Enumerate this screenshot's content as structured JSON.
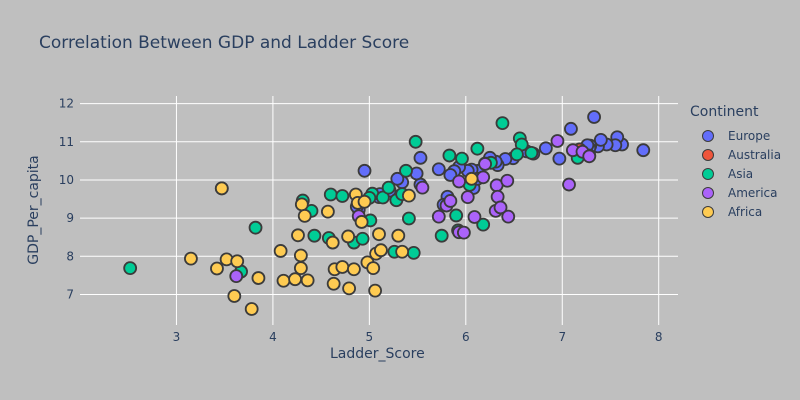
{
  "chart_data": {
    "type": "scatter",
    "title": "Correlation Between GDP and Ladder Score",
    "xlabel": "Ladder_Score",
    "ylabel": "GDP_Per_capita",
    "xlim": [
      2.0,
      8.2
    ],
    "ylim": [
      6.2,
      12.2
    ],
    "xticks": [
      3,
      4,
      5,
      6,
      7,
      8
    ],
    "yticks": [
      7,
      8,
      9,
      10,
      11,
      12
    ],
    "grid": true,
    "background": "#bfbfbf",
    "gridColor": "#ffffff",
    "legend": {
      "title": "Continent",
      "position": "right"
    },
    "series": [
      {
        "name": "Europe",
        "color": "#636efa",
        "points": [
          [
            7.84,
            10.78
          ],
          [
            7.62,
            10.93
          ],
          [
            7.57,
            11.12
          ],
          [
            7.55,
            10.91
          ],
          [
            7.46,
            10.93
          ],
          [
            7.37,
            10.88
          ],
          [
            7.4,
            11.05
          ],
          [
            7.33,
            11.65
          ],
          [
            7.29,
            10.9
          ],
          [
            7.28,
            10.83
          ],
          [
            7.26,
            10.91
          ],
          [
            7.09,
            11.34
          ],
          [
            6.97,
            10.56
          ],
          [
            6.83,
            10.83
          ],
          [
            6.7,
            10.69
          ],
          [
            6.63,
            10.75
          ],
          [
            6.49,
            10.57
          ],
          [
            6.41,
            10.55
          ],
          [
            6.33,
            10.39
          ],
          [
            6.31,
            10.48
          ],
          [
            6.25,
            10.58
          ],
          [
            6.2,
            10.43
          ],
          [
            6.13,
            10.24
          ],
          [
            6.06,
            10.27
          ],
          [
            6.02,
            10.24
          ],
          [
            5.93,
            10.34
          ],
          [
            5.88,
            10.23
          ],
          [
            5.84,
            10.13
          ],
          [
            5.81,
            9.56
          ],
          [
            5.77,
            9.35
          ],
          [
            5.72,
            10.28
          ],
          [
            5.53,
            9.88
          ],
          [
            5.53,
            10.58
          ],
          [
            5.49,
            10.17
          ],
          [
            5.34,
            9.94
          ],
          [
            5.29,
            10.03
          ],
          [
            5.1,
            9.55
          ],
          [
            4.95,
            10.24
          ],
          [
            4.89,
            9.22
          ],
          [
            4.87,
            9.3
          ],
          [
            5.11,
            9.63
          ],
          [
            5.21,
            9.72
          ],
          [
            6.08,
            9.79
          ],
          [
            6.12,
            10.03
          ]
        ]
      },
      {
        "name": "Australia",
        "color": "#ef553b",
        "points": [
          [
            7.18,
            10.8
          ],
          [
            7.28,
            10.64
          ]
        ]
      },
      {
        "name": "Asia",
        "color": "#00cc96",
        "points": [
          [
            2.52,
            7.69
          ],
          [
            3.67,
            7.6
          ],
          [
            3.82,
            8.75
          ],
          [
            4.31,
            9.46
          ],
          [
            4.4,
            9.19
          ],
          [
            4.43,
            8.54
          ],
          [
            4.58,
            8.48
          ],
          [
            4.6,
            9.62
          ],
          [
            4.72,
            9.58
          ],
          [
            4.84,
            8.36
          ],
          [
            4.93,
            8.46
          ],
          [
            5.01,
            8.94
          ],
          [
            5.03,
            9.64
          ],
          [
            5.14,
            9.54
          ],
          [
            5.2,
            9.8
          ],
          [
            5.26,
            8.12
          ],
          [
            5.28,
            9.47
          ],
          [
            5.34,
            9.63
          ],
          [
            5.38,
            10.24
          ],
          [
            5.41,
            8.99
          ],
          [
            5.46,
            8.09
          ],
          [
            5.48,
            11.0
          ],
          [
            5.75,
            8.54
          ],
          [
            5.83,
            10.64
          ],
          [
            5.9,
            9.07
          ],
          [
            5.96,
            10.56
          ],
          [
            6.04,
            9.87
          ],
          [
            6.12,
            10.82
          ],
          [
            6.18,
            8.83
          ],
          [
            6.26,
            10.45
          ],
          [
            6.38,
            11.49
          ],
          [
            6.56,
            11.09
          ],
          [
            6.58,
            10.93
          ],
          [
            6.68,
            10.71
          ],
          [
            6.53,
            10.67
          ],
          [
            7.16,
            10.58
          ],
          [
            5.0,
            9.53
          ],
          [
            5.92,
            8.68
          ]
        ]
      },
      {
        "name": "America",
        "color": "#ab63fa",
        "points": [
          [
            3.62,
            7.48
          ],
          [
            4.89,
            9.05
          ],
          [
            5.55,
            9.8
          ],
          [
            5.72,
            9.04
          ],
          [
            5.8,
            9.33
          ],
          [
            5.84,
            9.45
          ],
          [
            5.93,
            8.63
          ],
          [
            5.98,
            8.62
          ],
          [
            6.02,
            9.55
          ],
          [
            6.09,
            9.03
          ],
          [
            6.18,
            10.07
          ],
          [
            6.2,
            10.42
          ],
          [
            6.32,
            9.86
          ],
          [
            6.33,
            9.56
          ],
          [
            6.31,
            9.19
          ],
          [
            6.43,
            9.98
          ],
          [
            6.44,
            9.04
          ],
          [
            6.95,
            11.02
          ],
          [
            7.07,
            9.88
          ],
          [
            7.11,
            10.78
          ],
          [
            7.21,
            10.74
          ],
          [
            7.28,
            10.62
          ],
          [
            5.93,
            9.96
          ],
          [
            6.36,
            9.28
          ]
        ]
      },
      {
        "name": "Africa",
        "color": "#fecb52",
        "points": [
          [
            3.15,
            7.94
          ],
          [
            3.42,
            7.68
          ],
          [
            3.47,
            9.78
          ],
          [
            3.52,
            7.92
          ],
          [
            3.6,
            6.96
          ],
          [
            3.63,
            7.87
          ],
          [
            3.78,
            6.62
          ],
          [
            3.85,
            7.43
          ],
          [
            4.08,
            8.14
          ],
          [
            4.11,
            7.36
          ],
          [
            4.23,
            7.4
          ],
          [
            4.26,
            8.55
          ],
          [
            4.29,
            7.69
          ],
          [
            4.29,
            8.02
          ],
          [
            4.3,
            9.36
          ],
          [
            4.33,
            9.06
          ],
          [
            4.36,
            7.37
          ],
          [
            4.57,
            9.17
          ],
          [
            4.62,
            8.36
          ],
          [
            4.63,
            7.28
          ],
          [
            4.64,
            7.66
          ],
          [
            4.72,
            7.72
          ],
          [
            4.78,
            8.52
          ],
          [
            4.79,
            7.16
          ],
          [
            4.84,
            7.66
          ],
          [
            4.86,
            9.62
          ],
          [
            4.88,
            9.4
          ],
          [
            4.92,
            8.9
          ],
          [
            4.95,
            9.43
          ],
          [
            4.98,
            7.84
          ],
          [
            5.04,
            7.69
          ],
          [
            5.06,
            7.1
          ],
          [
            5.07,
            8.07
          ],
          [
            5.1,
            8.58
          ],
          [
            5.12,
            8.16
          ],
          [
            5.3,
            8.54
          ],
          [
            5.34,
            8.12
          ],
          [
            5.41,
            9.59
          ],
          [
            6.06,
            10.03
          ],
          [
            3.47,
            9.78
          ]
        ]
      }
    ]
  }
}
